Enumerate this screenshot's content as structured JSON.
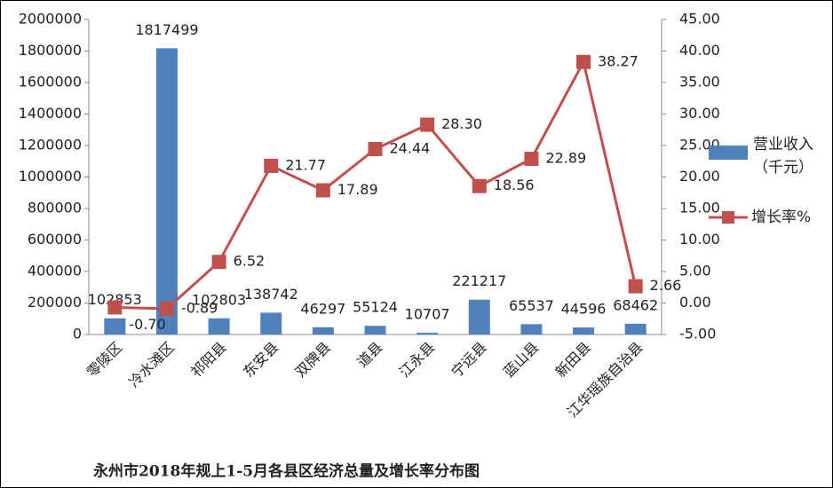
{
  "chart_data": {
    "type": "bar_line",
    "title": "永州市2018年规上1-5月各县区经济总量及增长率分布图",
    "categories": [
      "零陵区",
      "冷水滩区",
      "祁阳县",
      "东安县",
      "双牌县",
      "道县",
      "江永县",
      "宁远县",
      "蓝山县",
      "新田县",
      "江华瑶族自治县"
    ],
    "series": [
      {
        "name": "营业收入（千元）",
        "color": "#4f81bd",
        "type": "bar",
        "values": [
          102853,
          1817499,
          102803,
          138742,
          46297,
          55124,
          10707,
          221217,
          65537,
          44596,
          68462
        ]
      },
      {
        "name": "增长率%",
        "color": "#c0504d",
        "type": "line",
        "axis": "y2",
        "values": [
          -0.7,
          -0.89,
          6.52,
          21.77,
          17.89,
          24.44,
          28.3,
          18.56,
          22.89,
          38.27,
          2.66
        ],
        "value_labels": [
          "-0.70",
          "-0.89",
          "6.52",
          "21.77",
          "17.89",
          "24.44",
          "28.30",
          "18.56",
          "22.89",
          "38.27",
          "2.66"
        ]
      }
    ],
    "ylim": [
      0,
      2000000
    ],
    "yticks": [
      0,
      200000,
      400000,
      600000,
      800000,
      1000000,
      1200000,
      1400000,
      1600000,
      1800000,
      2000000
    ],
    "y2lim": [
      -5,
      45
    ],
    "y2ticks": [
      {
        "value": -5,
        "label": "-5.00"
      },
      {
        "value": 0,
        "label": "0.00"
      },
      {
        "value": 5,
        "label": "5.00"
      },
      {
        "value": 10,
        "label": "10.00"
      },
      {
        "value": 15,
        "label": "15.00"
      },
      {
        "value": 20,
        "label": "20.00"
      },
      {
        "value": 25,
        "label": "25.00"
      },
      {
        "value": 30,
        "label": "30.00"
      },
      {
        "value": 35,
        "label": "35.00"
      },
      {
        "value": 40,
        "label": "40.00"
      },
      {
        "value": 45,
        "label": "45.00"
      }
    ],
    "legend": "right"
  }
}
